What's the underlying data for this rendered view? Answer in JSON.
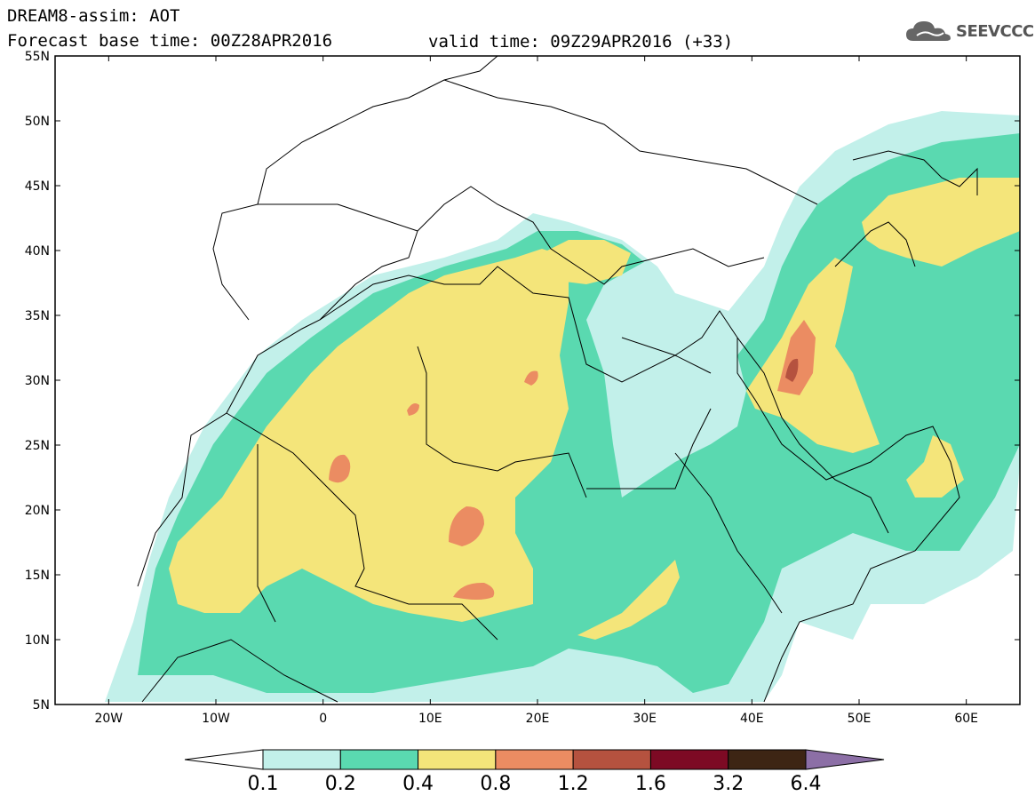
{
  "header": {
    "line1": "DREAM8-assim: AOT",
    "line2": "Forecast base time: 00Z28APR2016",
    "valid": "valid time: 09Z29APR2016 (+33)"
  },
  "logo": {
    "text": "SEEVCCC",
    "icon": "cloud-icon"
  },
  "map": {
    "lat_ticks": [
      "55N",
      "50N",
      "45N",
      "40N",
      "35N",
      "30N",
      "25N",
      "20N",
      "15N",
      "10N",
      "5N"
    ],
    "lon_ticks": [
      "20W",
      "10W",
      "0",
      "10E",
      "20E",
      "30E",
      "40E",
      "50E",
      "60E"
    ],
    "lat_range": [
      5,
      55
    ],
    "lon_range": [
      -25,
      65
    ]
  },
  "legend": {
    "labels": [
      "0.1",
      "0.2",
      "0.4",
      "0.8",
      "1.2",
      "1.6",
      "3.2",
      "6.4"
    ],
    "colors": [
      "#ffffff",
      "#c2f0ea",
      "#5ad9b0",
      "#f4e57a",
      "#eb8c62",
      "#b5523f",
      "#7d0a24",
      "#3d2514",
      "#8c6fa6"
    ]
  },
  "colors": {
    "c01": "#c2f0ea",
    "c02": "#5ad9b0",
    "c04": "#f4e57a",
    "c08": "#eb8c62",
    "c12": "#b5523f"
  }
}
